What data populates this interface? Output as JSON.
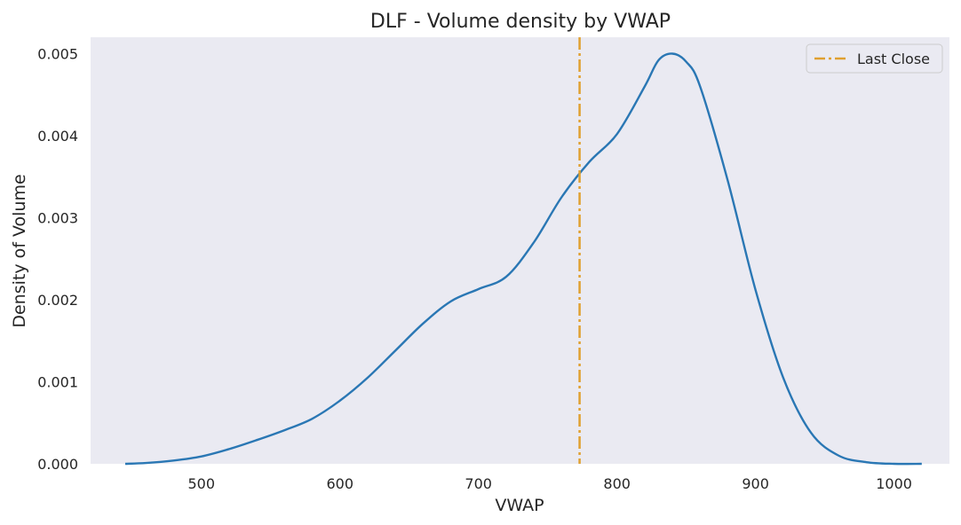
{
  "chart_data": {
    "type": "line",
    "title": "DLF - Volume density by VWAP",
    "xlabel": "VWAP",
    "ylabel": "Density of Volume",
    "xlim": [
      420,
      1040
    ],
    "ylim": [
      0,
      0.0052
    ],
    "x_ticks": [
      500,
      600,
      700,
      800,
      900,
      1000
    ],
    "x_tick_labels": [
      "500",
      "600",
      "700",
      "800",
      "900",
      "1000"
    ],
    "y_ticks": [
      0,
      0.001,
      0.002,
      0.003,
      0.004,
      0.005
    ],
    "y_tick_labels": [
      "0.000",
      "0.001",
      "0.002",
      "0.003",
      "0.004",
      "0.005"
    ],
    "grid": false,
    "background": "#eaeaf2",
    "legend": {
      "placement": "top-right",
      "entries": [
        {
          "label": "Last Close",
          "style": "dash-dot",
          "color": "#e0a030"
        }
      ]
    },
    "series": [
      {
        "color": "#2a77b4",
        "x": [
          445,
          460,
          480,
          500,
          520,
          540,
          560,
          580,
          600,
          620,
          640,
          660,
          680,
          700,
          720,
          740,
          760,
          780,
          800,
          820,
          830,
          840,
          850,
          860,
          880,
          900,
          920,
          940,
          960,
          980,
          1000,
          1020
        ],
        "y": [
          0.0,
          1e-05,
          4e-05,
          9e-05,
          0.00018,
          0.00029,
          0.00041,
          0.00055,
          0.00077,
          0.00105,
          0.00138,
          0.00171,
          0.00198,
          0.00213,
          0.00228,
          0.0027,
          0.00325,
          0.00368,
          0.00402,
          0.0046,
          0.00492,
          0.005,
          0.0049,
          0.0046,
          0.00345,
          0.00212,
          0.00105,
          0.00038,
          0.0001,
          2e-05,
          0.0,
          0.0
        ]
      }
    ],
    "vlines": [
      {
        "label": "Last Close",
        "x": 773,
        "color": "#e0a030",
        "style": "dash-dot"
      }
    ]
  }
}
